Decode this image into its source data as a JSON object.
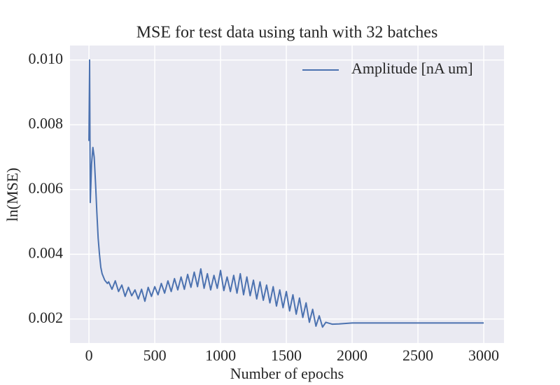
{
  "chart_data": {
    "type": "line",
    "title": "MSE for test data using tanh with 32 batches",
    "xlabel": "Number of epochs",
    "ylabel": "ln(MSE)",
    "x": [
      0,
      5,
      10,
      20,
      30,
      40,
      50,
      60,
      70,
      80,
      90,
      100,
      120,
      140,
      150,
      175,
      200,
      225,
      250,
      275,
      300,
      325,
      350,
      375,
      400,
      425,
      450,
      475,
      500,
      525,
      550,
      575,
      600,
      625,
      650,
      675,
      700,
      725,
      750,
      775,
      800,
      825,
      850,
      875,
      900,
      925,
      950,
      975,
      1000,
      1025,
      1050,
      1075,
      1100,
      1125,
      1150,
      1175,
      1200,
      1225,
      1250,
      1275,
      1300,
      1325,
      1350,
      1375,
      1400,
      1425,
      1450,
      1475,
      1500,
      1525,
      1550,
      1575,
      1600,
      1625,
      1650,
      1675,
      1700,
      1725,
      1750,
      1775,
      1800,
      1850,
      1900,
      2000,
      2500,
      3000
    ],
    "series": [
      {
        "name": "Amplitude [nA um]",
        "color": "#4c72b0",
        "values": [
          0.0075,
          0.01,
          0.0056,
          0.0068,
          0.0073,
          0.007,
          0.0062,
          0.0053,
          0.0045,
          0.004,
          0.0036,
          0.0034,
          0.0032,
          0.0031,
          0.00315,
          0.00292,
          0.00318,
          0.00285,
          0.00305,
          0.0027,
          0.00298,
          0.00272,
          0.0029,
          0.00262,
          0.00292,
          0.00255,
          0.00298,
          0.0027,
          0.003,
          0.00275,
          0.0031,
          0.0028,
          0.00318,
          0.00285,
          0.00325,
          0.0029,
          0.0033,
          0.00292,
          0.00338,
          0.00298,
          0.00345,
          0.003,
          0.00355,
          0.00295,
          0.0034,
          0.0029,
          0.00335,
          0.00295,
          0.0035,
          0.00288,
          0.0033,
          0.00285,
          0.00335,
          0.0028,
          0.0034,
          0.00275,
          0.0033,
          0.00272,
          0.0032,
          0.00262,
          0.00315,
          0.00258,
          0.00305,
          0.0025,
          0.003,
          0.0024,
          0.0029,
          0.00235,
          0.00285,
          0.00225,
          0.00275,
          0.00215,
          0.00265,
          0.00205,
          0.0025,
          0.0019,
          0.0023,
          0.00178,
          0.0021,
          0.00175,
          0.0019,
          0.00184,
          0.00185,
          0.00188,
          0.00188,
          0.00188
        ]
      }
    ],
    "xlim": [
      -144,
      3154
    ],
    "xticks": [
      0,
      500,
      1000,
      1500,
      2000,
      2500,
      3000
    ],
    "ylim": [
      0.00126,
      0.01045
    ],
    "yticks": [
      {
        "value": 0.002,
        "label": "0.002"
      },
      {
        "value": 0.004,
        "label": "0.004"
      },
      {
        "value": 0.006,
        "label": "0.006"
      },
      {
        "value": 0.008,
        "label": "0.008"
      },
      {
        "value": 0.01,
        "label": "0.010"
      }
    ],
    "grid": true,
    "legend": "upper right"
  }
}
